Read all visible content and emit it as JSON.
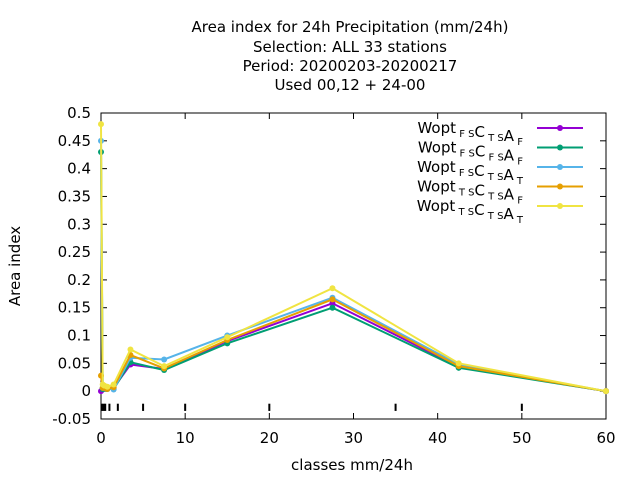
{
  "chart_data": {
    "type": "line",
    "title_lines": [
      "Area index  for 24h Precipitation (mm/24h)",
      "Selection: ALL     33 stations",
      "Period: 20200203-20200217",
      "Used  00,12  + 24-00"
    ],
    "xlabel": "classes mm/24h",
    "ylabel": "Area index",
    "xlim": [
      0,
      60
    ],
    "ylim": [
      -0.05,
      0.5
    ],
    "xticks": [
      0,
      10,
      20,
      30,
      40,
      50,
      60
    ],
    "yticks": [
      -0.05,
      0,
      0.05,
      0.1,
      0.15,
      0.2,
      0.25,
      0.3,
      0.35,
      0.4,
      0.45,
      0.5
    ],
    "ytick_labels": [
      "-0.05",
      "0",
      "0.05",
      "0.1",
      "0.15",
      "0.2",
      "0.25",
      "0.3",
      "0.35",
      "0.4",
      "0.45",
      "0.5"
    ],
    "grid": false,
    "legend_position": "top-right",
    "class_marks": [
      0.1,
      0.3,
      0.5,
      1,
      2,
      5,
      10,
      20,
      35,
      50
    ],
    "series": [
      {
        "name": "Wopt",
        "name_parts": [
          [
            "Wopt",
            ""
          ],
          [
            "",
            "F S"
          ],
          [
            "C",
            ""
          ],
          [
            "",
            "T S"
          ],
          [
            "A",
            ""
          ],
          [
            "",
            "F"
          ]
        ],
        "color": "#9400d3",
        "x": [
          0,
          0.2,
          0.4,
          0.75,
          1.5,
          3.5,
          7.5,
          15,
          27.5,
          42.5,
          60
        ],
        "y": [
          0.0,
          0.005,
          0.007,
          0.006,
          0.006,
          0.048,
          0.04,
          0.09,
          0.158,
          0.044,
          0.0
        ]
      },
      {
        "name": "Wopt",
        "name_parts": [
          [
            "Wopt",
            ""
          ],
          [
            "",
            "F S"
          ],
          [
            "C",
            ""
          ],
          [
            "",
            "F S"
          ],
          [
            "A",
            ""
          ],
          [
            "",
            "F"
          ]
        ],
        "color": "#009e73",
        "x": [
          0,
          0.2,
          0.4,
          0.75,
          1.5,
          3.5,
          7.5,
          15,
          27.5,
          42.5,
          60
        ],
        "y": [
          0.43,
          0.004,
          0.005,
          0.004,
          0.004,
          0.052,
          0.038,
          0.086,
          0.15,
          0.042,
          0.0
        ]
      },
      {
        "name": "Wopt",
        "name_parts": [
          [
            "Wopt",
            ""
          ],
          [
            "",
            "F S"
          ],
          [
            "C",
            ""
          ],
          [
            "",
            "T S"
          ],
          [
            "A",
            ""
          ],
          [
            "",
            "T"
          ]
        ],
        "color": "#56b4e9",
        "x": [
          0,
          0.2,
          0.4,
          0.75,
          1.5,
          3.5,
          7.5,
          15,
          27.5,
          42.5,
          60
        ],
        "y": [
          0.45,
          0.006,
          0.006,
          0.005,
          0.003,
          0.06,
          0.057,
          0.1,
          0.168,
          0.048,
          0.0
        ]
      },
      {
        "name": "Wopt",
        "name_parts": [
          [
            "Wopt",
            ""
          ],
          [
            "",
            "T S"
          ],
          [
            "C",
            ""
          ],
          [
            "",
            "T S"
          ],
          [
            "A",
            ""
          ],
          [
            "",
            "F"
          ]
        ],
        "color": "#e69f00",
        "x": [
          0,
          0.2,
          0.4,
          0.75,
          1.5,
          3.5,
          7.5,
          15,
          27.5,
          42.5,
          60
        ],
        "y": [
          0.028,
          0.006,
          0.006,
          0.004,
          0.007,
          0.065,
          0.041,
          0.092,
          0.165,
          0.045,
          0.0
        ]
      },
      {
        "name": "Wopt",
        "name_parts": [
          [
            "Wopt",
            ""
          ],
          [
            "",
            "T S"
          ],
          [
            "C",
            ""
          ],
          [
            "",
            "T S"
          ],
          [
            "A",
            ""
          ],
          [
            "",
            "T"
          ]
        ],
        "color": "#f0e442",
        "x": [
          0,
          0.2,
          0.4,
          0.75,
          1.5,
          3.5,
          7.5,
          15,
          27.5,
          42.5,
          60
        ],
        "y": [
          0.48,
          0.012,
          0.01,
          0.008,
          0.012,
          0.075,
          0.045,
          0.097,
          0.185,
          0.05,
          0.0
        ]
      }
    ]
  }
}
